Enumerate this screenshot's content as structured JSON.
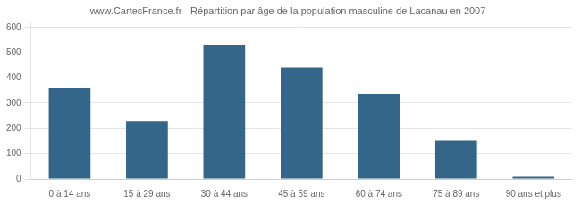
{
  "chart_data": {
    "type": "bar",
    "title": "www.CartesFrance.fr - Répartition par âge de la population masculine de Lacanau en 2007",
    "categories": [
      "0 à 14 ans",
      "15 à 29 ans",
      "30 à 44 ans",
      "45 à 59 ans",
      "60 à 74 ans",
      "75 à 89 ans",
      "90 ans et plus"
    ],
    "values": [
      360,
      228,
      530,
      443,
      335,
      153,
      9
    ],
    "color": "#336688",
    "ylim": [
      0,
      620
    ],
    "yticks": [
      0,
      100,
      200,
      300,
      400,
      500,
      600
    ],
    "grid": true
  }
}
